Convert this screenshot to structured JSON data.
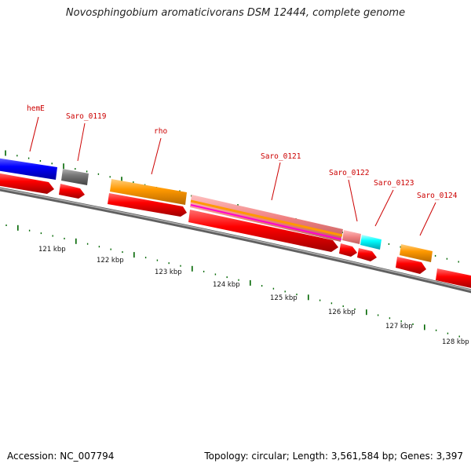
{
  "title": "Novosphingobium aromaticivorans DSM 12444, complete genome",
  "footer": {
    "accession": "Accession: NC_007794",
    "summary": "Topology: circular; Length: 3,561,584 bp; Genes: 3,397"
  },
  "gene_labels": [
    {
      "id": "hemE",
      "text": "hemE"
    },
    {
      "id": "saro-0119",
      "text": "Saro_0119"
    },
    {
      "id": "rho",
      "text": "rho"
    },
    {
      "id": "saro-0121",
      "text": "Saro_0121"
    },
    {
      "id": "saro-0122",
      "text": "Saro_0122"
    },
    {
      "id": "saro-0123",
      "text": "Saro_0123"
    },
    {
      "id": "saro-0124",
      "text": "Saro_0124"
    }
  ],
  "scale_labels": [
    "121 kbp",
    "122 kbp",
    "123 kbp",
    "124 kbp",
    "125 kbp",
    "126 kbp",
    "127 kbp",
    "128 kbp"
  ],
  "colors": {
    "cds": "#ff0000",
    "gene_orange": "#ff9900",
    "gene_blue": "#0000ff",
    "gene_gray": "#777777",
    "gene_pink": "#f08080",
    "gene_cyan": "#00ffff",
    "backbone": "#808080",
    "tick": "#006600",
    "label": "#cc0000"
  }
}
